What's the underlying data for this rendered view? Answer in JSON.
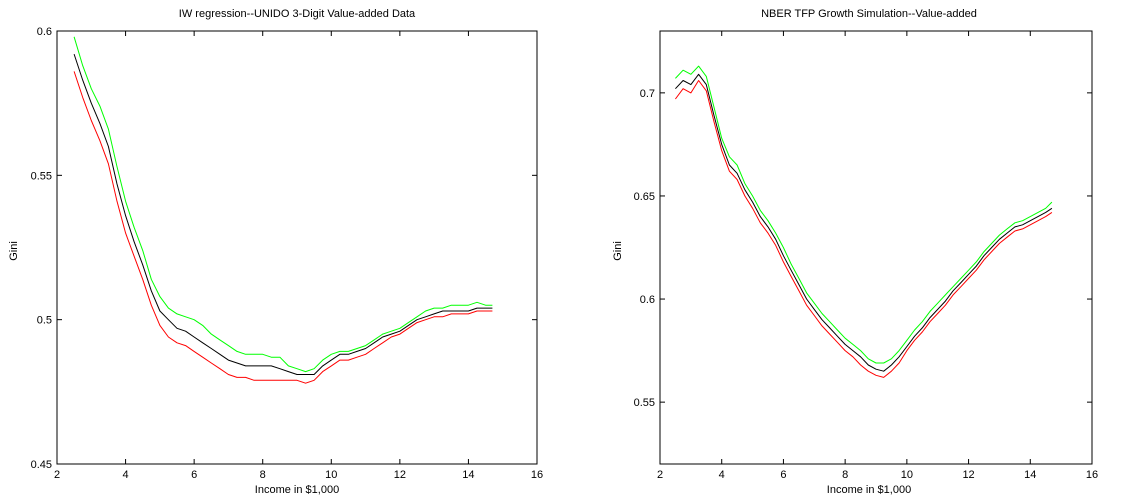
{
  "chart_data": [
    {
      "type": "line",
      "title": "IW regression--UNIDO 3-Digit Value-added Data",
      "xlabel": "Income in $1,000",
      "ylabel": "Gini",
      "xlim": [
        2,
        16
      ],
      "ylim": [
        0.45,
        0.6
      ],
      "xticks": [
        2,
        4,
        6,
        8,
        10,
        12,
        14,
        16
      ],
      "yticks": [
        0.45,
        0.5,
        0.55,
        0.6
      ],
      "xtick_labels": [
        "2",
        "4",
        "6",
        "8",
        "10",
        "12",
        "14",
        "16"
      ],
      "ytick_labels": [
        "0.45",
        "0.5",
        "0.55",
        "0.6"
      ],
      "grid": false,
      "x": [
        2.5,
        2.75,
        3.0,
        3.25,
        3.5,
        3.75,
        4.0,
        4.25,
        4.5,
        4.75,
        5.0,
        5.25,
        5.5,
        5.75,
        6.0,
        6.25,
        6.5,
        6.75,
        7.0,
        7.25,
        7.5,
        7.75,
        8.0,
        8.25,
        8.5,
        8.75,
        9.0,
        9.25,
        9.5,
        9.75,
        10.0,
        10.25,
        10.5,
        10.75,
        11.0,
        11.25,
        11.5,
        11.75,
        12.0,
        12.25,
        12.5,
        12.75,
        13.0,
        13.25,
        13.5,
        13.75,
        14.0,
        14.25,
        14.5,
        14.7
      ],
      "series": [
        {
          "color": "#00ff00",
          "values": [
            0.598,
            0.588,
            0.58,
            0.574,
            0.566,
            0.553,
            0.541,
            0.532,
            0.524,
            0.514,
            0.508,
            0.504,
            0.502,
            0.501,
            0.5,
            0.498,
            0.495,
            0.493,
            0.491,
            0.489,
            0.488,
            0.488,
            0.488,
            0.487,
            0.487,
            0.484,
            0.483,
            0.482,
            0.483,
            0.486,
            0.488,
            0.489,
            0.489,
            0.49,
            0.491,
            0.493,
            0.495,
            0.496,
            0.497,
            0.499,
            0.501,
            0.503,
            0.504,
            0.504,
            0.505,
            0.505,
            0.505,
            0.506,
            0.505,
            0.505
          ]
        },
        {
          "color": "#000000",
          "values": [
            0.592,
            0.583,
            0.575,
            0.568,
            0.56,
            0.547,
            0.536,
            0.527,
            0.519,
            0.51,
            0.503,
            0.5,
            0.497,
            0.496,
            0.494,
            0.492,
            0.49,
            0.488,
            0.486,
            0.485,
            0.484,
            0.484,
            0.484,
            0.484,
            0.483,
            0.482,
            0.481,
            0.481,
            0.481,
            0.484,
            0.486,
            0.488,
            0.488,
            0.489,
            0.49,
            0.492,
            0.494,
            0.495,
            0.496,
            0.498,
            0.5,
            0.501,
            0.502,
            0.503,
            0.503,
            0.503,
            0.503,
            0.504,
            0.504,
            0.504
          ]
        },
        {
          "color": "#ff0000",
          "values": [
            0.586,
            0.577,
            0.569,
            0.562,
            0.554,
            0.541,
            0.53,
            0.522,
            0.514,
            0.505,
            0.498,
            0.494,
            0.492,
            0.491,
            0.489,
            0.487,
            0.485,
            0.483,
            0.481,
            0.48,
            0.48,
            0.479,
            0.479,
            0.479,
            0.479,
            0.479,
            0.479,
            0.478,
            0.479,
            0.482,
            0.484,
            0.486,
            0.486,
            0.487,
            0.488,
            0.49,
            0.492,
            0.494,
            0.495,
            0.497,
            0.499,
            0.5,
            0.501,
            0.501,
            0.502,
            0.502,
            0.502,
            0.503,
            0.503,
            0.503
          ]
        }
      ]
    },
    {
      "type": "line",
      "title": "NBER TFP Growth Simulation--Value-added",
      "xlabel": "Income in $1,000",
      "ylabel": "Gini",
      "xlim": [
        2,
        16
      ],
      "ylim": [
        0.52,
        0.73
      ],
      "xticks": [
        2,
        4,
        6,
        8,
        10,
        12,
        14,
        16
      ],
      "yticks": [
        0.55,
        0.6,
        0.65,
        0.7
      ],
      "xtick_labels": [
        "2",
        "4",
        "6",
        "8",
        "10",
        "12",
        "14",
        "16"
      ],
      "ytick_labels": [
        "0.55",
        "0.6",
        "0.65",
        "0.7"
      ],
      "grid": false,
      "x": [
        2.5,
        2.75,
        3.0,
        3.25,
        3.5,
        3.75,
        4.0,
        4.25,
        4.5,
        4.75,
        5.0,
        5.25,
        5.5,
        5.75,
        6.0,
        6.25,
        6.5,
        6.75,
        7.0,
        7.25,
        7.5,
        7.75,
        8.0,
        8.25,
        8.5,
        8.75,
        9.0,
        9.25,
        9.5,
        9.75,
        10.0,
        10.25,
        10.5,
        10.75,
        11.0,
        11.25,
        11.5,
        11.75,
        12.0,
        12.25,
        12.5,
        12.75,
        13.0,
        13.25,
        13.5,
        13.75,
        14.0,
        14.25,
        14.5,
        14.7
      ],
      "series": [
        {
          "color": "#00ff00",
          "values": [
            0.707,
            0.711,
            0.709,
            0.713,
            0.708,
            0.693,
            0.678,
            0.669,
            0.665,
            0.656,
            0.65,
            0.643,
            0.638,
            0.632,
            0.625,
            0.617,
            0.61,
            0.603,
            0.598,
            0.593,
            0.589,
            0.585,
            0.581,
            0.578,
            0.575,
            0.571,
            0.569,
            0.569,
            0.571,
            0.575,
            0.58,
            0.585,
            0.589,
            0.594,
            0.598,
            0.602,
            0.606,
            0.61,
            0.614,
            0.618,
            0.623,
            0.627,
            0.631,
            0.634,
            0.637,
            0.638,
            0.64,
            0.642,
            0.644,
            0.647
          ]
        },
        {
          "color": "#000000",
          "values": [
            0.702,
            0.706,
            0.704,
            0.709,
            0.704,
            0.689,
            0.675,
            0.665,
            0.661,
            0.653,
            0.647,
            0.64,
            0.635,
            0.629,
            0.621,
            0.614,
            0.607,
            0.6,
            0.595,
            0.59,
            0.586,
            0.582,
            0.578,
            0.575,
            0.572,
            0.568,
            0.566,
            0.565,
            0.568,
            0.572,
            0.577,
            0.582,
            0.586,
            0.591,
            0.595,
            0.599,
            0.604,
            0.608,
            0.612,
            0.616,
            0.621,
            0.625,
            0.629,
            0.632,
            0.635,
            0.636,
            0.638,
            0.64,
            0.642,
            0.644
          ]
        },
        {
          "color": "#ff0000",
          "values": [
            0.697,
            0.702,
            0.7,
            0.706,
            0.701,
            0.686,
            0.672,
            0.662,
            0.658,
            0.65,
            0.644,
            0.637,
            0.632,
            0.626,
            0.618,
            0.611,
            0.604,
            0.597,
            0.592,
            0.587,
            0.583,
            0.579,
            0.575,
            0.572,
            0.568,
            0.565,
            0.563,
            0.562,
            0.565,
            0.569,
            0.575,
            0.58,
            0.584,
            0.589,
            0.593,
            0.597,
            0.602,
            0.606,
            0.61,
            0.614,
            0.619,
            0.623,
            0.627,
            0.63,
            0.633,
            0.634,
            0.636,
            0.638,
            0.64,
            0.642
          ]
        }
      ]
    }
  ]
}
